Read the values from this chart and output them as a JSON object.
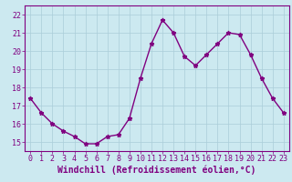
{
  "x": [
    0,
    1,
    2,
    3,
    4,
    5,
    6,
    7,
    8,
    9,
    10,
    11,
    12,
    13,
    14,
    15,
    16,
    17,
    18,
    19,
    20,
    21,
    22,
    23
  ],
  "y": [
    17.4,
    16.6,
    16.0,
    15.6,
    15.3,
    14.9,
    14.9,
    15.3,
    15.4,
    16.3,
    18.5,
    20.4,
    21.7,
    21.0,
    19.7,
    19.2,
    19.8,
    20.4,
    21.0,
    20.9,
    19.8,
    18.5,
    17.4,
    16.6
  ],
  "line_color": "#800080",
  "marker": "*",
  "marker_size": 3.5,
  "bg_color": "#cce9f0",
  "grid_color": "#aacdd8",
  "xlabel": "Windchill (Refroidissement éolien,°C)",
  "xlabel_fontsize": 7,
  "ylim": [
    14.5,
    22.5
  ],
  "xlim": [
    -0.5,
    23.5
  ],
  "yticks": [
    15,
    16,
    17,
    18,
    19,
    20,
    21,
    22
  ],
  "xticks": [
    0,
    1,
    2,
    3,
    4,
    5,
    6,
    7,
    8,
    9,
    10,
    11,
    12,
    13,
    14,
    15,
    16,
    17,
    18,
    19,
    20,
    21,
    22,
    23
  ],
  "tick_color": "#800080",
  "tick_fontsize": 6,
  "spine_color": "#800080",
  "linewidth": 1.0
}
